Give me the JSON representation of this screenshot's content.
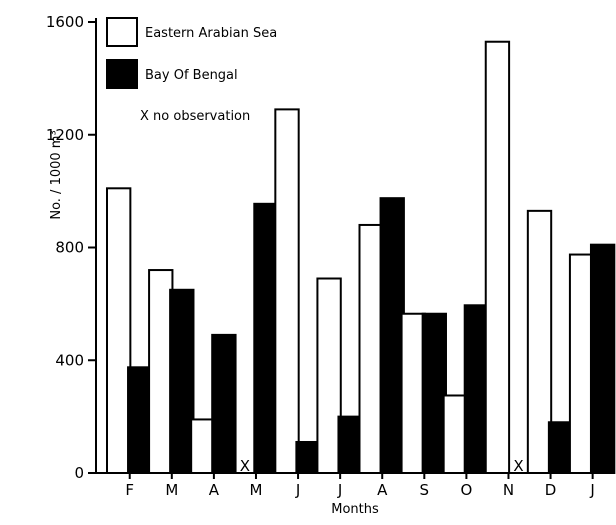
{
  "chart_data": {
    "type": "bar",
    "title": "",
    "xlabel": "Months",
    "ylabel": "No. / 1000 m³",
    "ylim": [
      0,
      1600
    ],
    "yticks": [
      0,
      400,
      800,
      1200,
      1600
    ],
    "grid": false,
    "legend_position": "top-left",
    "categories": [
      "F",
      "M",
      "A",
      "M",
      "J",
      "J",
      "A",
      "S",
      "O",
      "N",
      "D",
      "J"
    ],
    "series": [
      {
        "name": "Eastern Arabian Sea",
        "fill": "#ffffff",
        "values": [
          1010,
          720,
          190,
          null,
          1290,
          690,
          880,
          565,
          275,
          1530,
          930,
          775
        ]
      },
      {
        "name": "Bay Of Bengal",
        "fill": "#000000",
        "values": [
          375,
          650,
          490,
          955,
          110,
          200,
          975,
          565,
          595,
          null,
          180,
          810
        ]
      }
    ],
    "missing_marker": "X",
    "missing_note": "X no observation"
  }
}
